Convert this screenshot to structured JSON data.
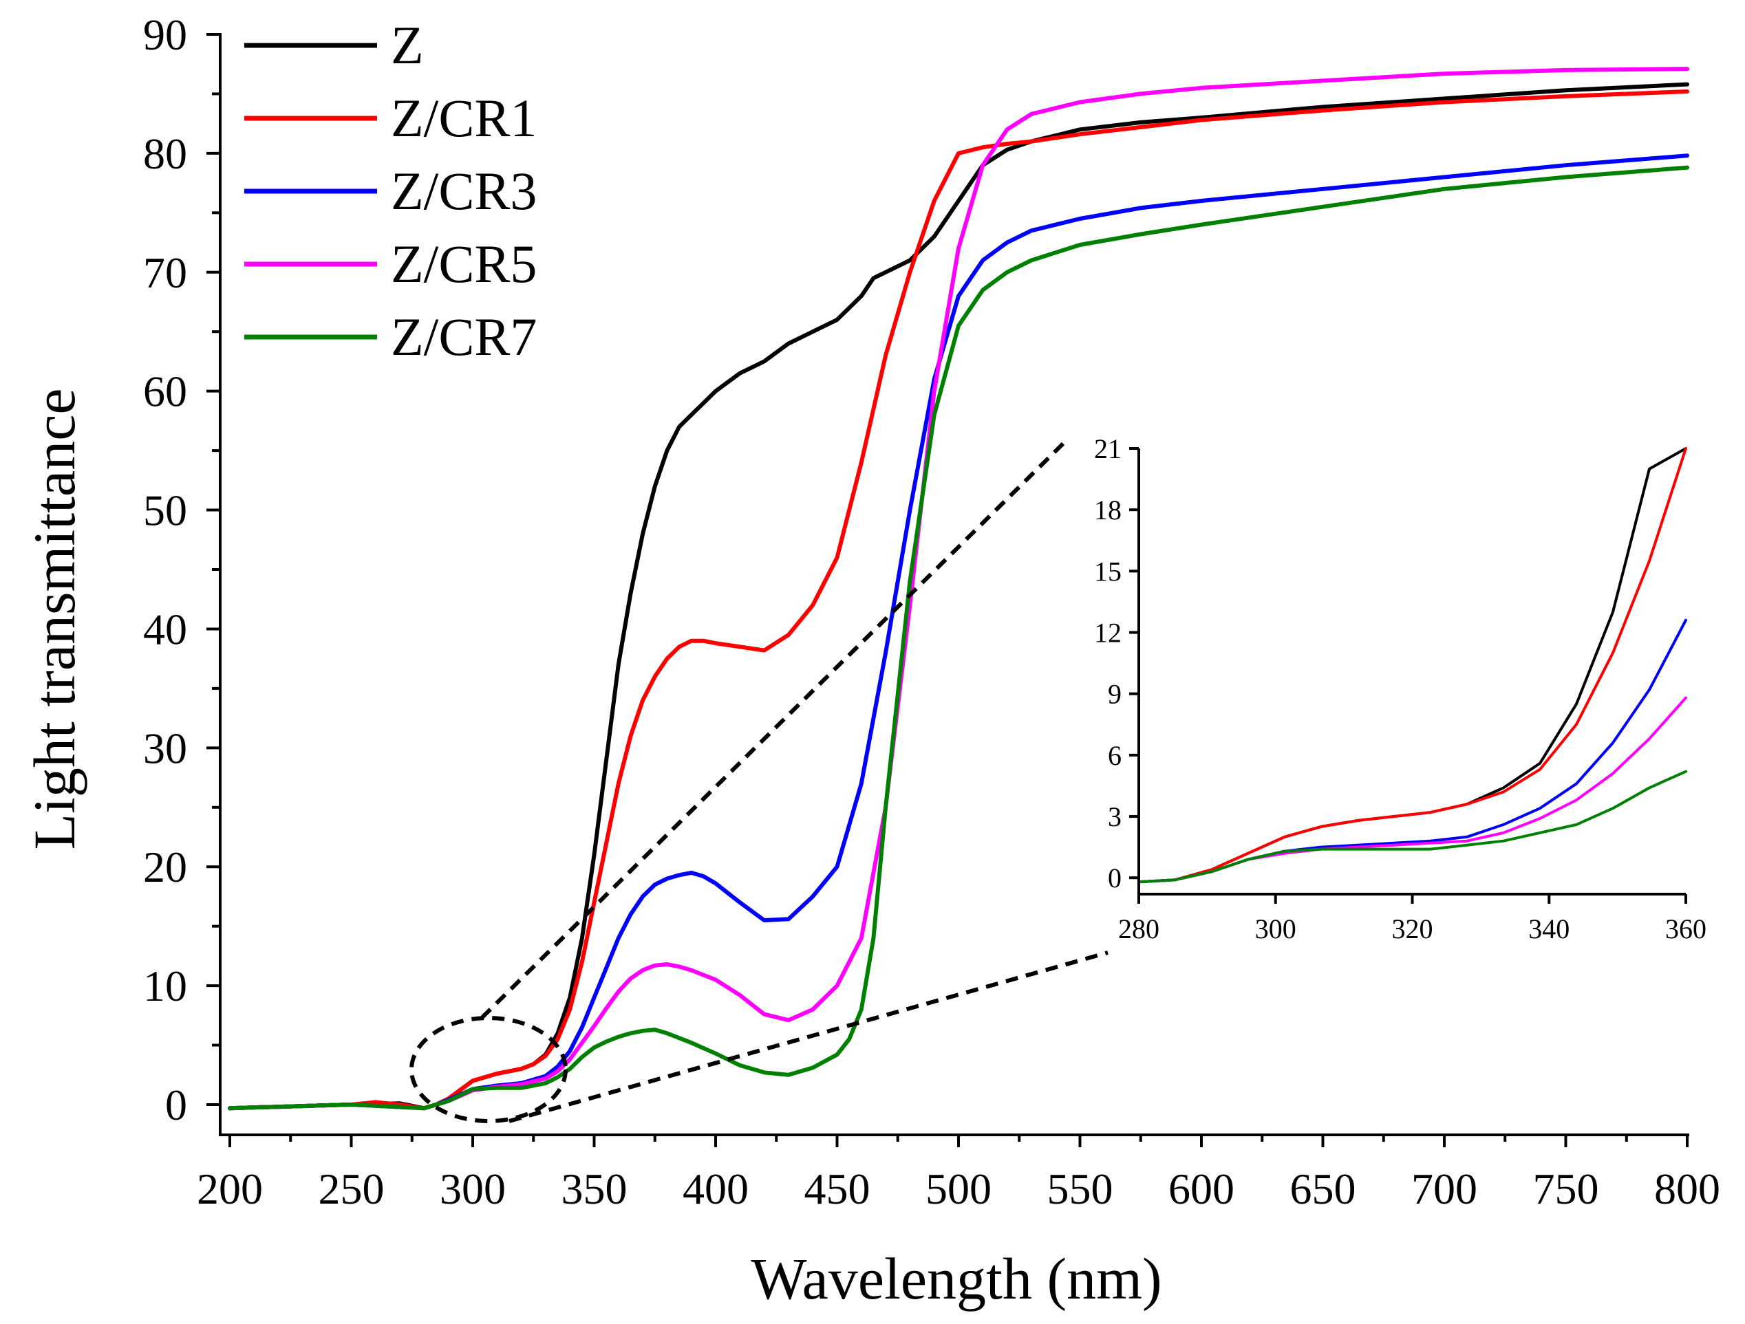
{
  "chart_data": {
    "type": "line",
    "title": "",
    "xlabel": "Wavelength (nm)",
    "ylabel": "Light transmittance",
    "xlim": [
      200,
      800
    ],
    "ylim": [
      -2,
      90
    ],
    "xticks": [
      200,
      250,
      300,
      350,
      400,
      450,
      500,
      550,
      600,
      650,
      700,
      750,
      800
    ],
    "yticks": [
      0,
      10,
      20,
      30,
      40,
      50,
      60,
      70,
      80,
      90
    ],
    "legend_position": "top-left",
    "grid": false,
    "series": [
      {
        "name": "Z",
        "color": "#000000",
        "x": [
          200,
          250,
          270,
          280,
          285,
          290,
          300,
          310,
          320,
          325,
          330,
          335,
          340,
          345,
          350,
          355,
          360,
          365,
          370,
          375,
          380,
          385,
          390,
          395,
          400,
          410,
          420,
          430,
          440,
          450,
          460,
          465,
          470,
          480,
          490,
          500,
          510,
          520,
          530,
          540,
          550,
          575,
          600,
          650,
          700,
          750,
          800
        ],
        "y": [
          -0.3,
          0,
          0.1,
          -0.3,
          0,
          0.5,
          2.0,
          2.6,
          3.0,
          3.4,
          4.2,
          6,
          9,
          14,
          21,
          29,
          37,
          43,
          48,
          52,
          55,
          57,
          58,
          59,
          60,
          61.5,
          62.5,
          64,
          65,
          66,
          68,
          69.5,
          70,
          71,
          73,
          76,
          79,
          80.3,
          81,
          81.5,
          82,
          82.6,
          83,
          83.9,
          84.6,
          85.3,
          85.8
        ]
      },
      {
        "name": "Z/CR1",
        "color": "#ff0000",
        "x": [
          200,
          250,
          260,
          270,
          280,
          285,
          290,
          300,
          310,
          320,
          325,
          330,
          335,
          340,
          345,
          350,
          355,
          360,
          365,
          370,
          375,
          380,
          385,
          390,
          395,
          400,
          410,
          420,
          430,
          440,
          450,
          460,
          470,
          480,
          490,
          500,
          510,
          520,
          530,
          540,
          550,
          575,
          600,
          650,
          700,
          750,
          800
        ],
        "y": [
          -0.3,
          0,
          0.2,
          0,
          -0.3,
          0,
          0.5,
          2.0,
          2.6,
          3.0,
          3.4,
          4.1,
          5.5,
          8,
          12,
          17,
          22,
          27,
          31,
          34,
          36,
          37.5,
          38.5,
          39,
          39,
          38.8,
          38.5,
          38.2,
          39.5,
          42,
          46,
          54,
          63,
          70,
          76,
          80,
          80.5,
          80.8,
          81,
          81.3,
          81.6,
          82.2,
          82.8,
          83.6,
          84.3,
          84.8,
          85.2
        ]
      },
      {
        "name": "Z/CR3",
        "color": "#0000ff",
        "x": [
          200,
          250,
          280,
          285,
          290,
          300,
          310,
          320,
          330,
          335,
          340,
          345,
          350,
          355,
          360,
          365,
          370,
          375,
          380,
          385,
          390,
          395,
          400,
          410,
          420,
          430,
          440,
          450,
          460,
          470,
          480,
          490,
          500,
          510,
          520,
          530,
          550,
          575,
          600,
          650,
          700,
          750,
          800
        ],
        "y": [
          -0.3,
          0,
          -0.3,
          0,
          0.4,
          1.3,
          1.6,
          1.8,
          2.4,
          3.2,
          4.5,
          6.5,
          9,
          11.5,
          14,
          16,
          17.5,
          18.5,
          19,
          19.3,
          19.5,
          19.2,
          18.6,
          17,
          15.5,
          15.6,
          17.5,
          20,
          27,
          38,
          50,
          61,
          68,
          71,
          72.5,
          73.5,
          74.5,
          75.4,
          76,
          77,
          78,
          79,
          79.8
        ]
      },
      {
        "name": "Z/CR5",
        "color": "#ff00ff",
        "x": [
          200,
          250,
          280,
          285,
          290,
          300,
          310,
          320,
          330,
          335,
          340,
          345,
          350,
          355,
          360,
          365,
          370,
          375,
          380,
          385,
          390,
          400,
          410,
          420,
          430,
          440,
          450,
          460,
          470,
          480,
          490,
          500,
          510,
          520,
          530,
          550,
          575,
          600,
          650,
          700,
          750,
          800
        ],
        "y": [
          -0.3,
          0,
          -0.3,
          0,
          0.3,
          1.2,
          1.5,
          1.7,
          2.2,
          2.8,
          3.8,
          5.2,
          6.6,
          8.1,
          9.5,
          10.6,
          11.3,
          11.7,
          11.8,
          11.6,
          11.3,
          10.5,
          9.2,
          7.6,
          7.1,
          8,
          10,
          14,
          25,
          42,
          60,
          72,
          79,
          82,
          83.3,
          84.3,
          85,
          85.5,
          86.1,
          86.7,
          87,
          87.1
        ]
      },
      {
        "name": "Z/CR7",
        "color": "#008000",
        "x": [
          200,
          250,
          280,
          285,
          290,
          300,
          310,
          320,
          330,
          335,
          340,
          345,
          350,
          355,
          360,
          365,
          370,
          375,
          380,
          390,
          400,
          410,
          420,
          430,
          440,
          450,
          455,
          460,
          465,
          470,
          480,
          490,
          500,
          510,
          520,
          530,
          550,
          575,
          600,
          650,
          700,
          750,
          800
        ],
        "y": [
          -0.3,
          0,
          -0.3,
          0,
          0.3,
          1.3,
          1.4,
          1.4,
          1.8,
          2.3,
          3,
          4,
          4.8,
          5.3,
          5.7,
          6,
          6.2,
          6.3,
          6,
          5.2,
          4.3,
          3.3,
          2.7,
          2.5,
          3.1,
          4.2,
          5.5,
          8,
          14,
          25,
          44,
          58,
          65.5,
          68.5,
          70,
          71,
          72.3,
          73.2,
          74,
          75.5,
          77,
          78,
          78.8
        ]
      }
    ],
    "inset": {
      "xlim": [
        280,
        360
      ],
      "ylim": [
        -0.8,
        21
      ],
      "xticks": [
        280,
        300,
        320,
        340,
        360
      ],
      "yticks": [
        0,
        3,
        6,
        9,
        12,
        15,
        18,
        21
      ],
      "series_y": {
        "Z": [
          -0.2,
          -0.1,
          0.4,
          1.2,
          2.0,
          2.5,
          2.8,
          3.0,
          3.2,
          3.6,
          4.4,
          5.6,
          8.5,
          13,
          20,
          21
        ],
        "Z/CR1": [
          -0.2,
          -0.1,
          0.4,
          1.2,
          2.0,
          2.5,
          2.8,
          3.0,
          3.2,
          3.6,
          4.2,
          5.3,
          7.5,
          11,
          15.5,
          21
        ],
        "Z/CR3": [
          -0.2,
          -0.1,
          0.3,
          0.9,
          1.3,
          1.5,
          1.6,
          1.7,
          1.8,
          2.0,
          2.6,
          3.4,
          4.6,
          6.6,
          9.2,
          12.6
        ],
        "Z/CR5": [
          -0.2,
          -0.1,
          0.3,
          0.9,
          1.2,
          1.4,
          1.5,
          1.6,
          1.7,
          1.8,
          2.2,
          2.9,
          3.8,
          5.1,
          6.8,
          8.8
        ],
        "Z/CR7": [
          -0.2,
          -0.1,
          0.3,
          0.9,
          1.3,
          1.4,
          1.4,
          1.4,
          1.4,
          1.6,
          1.8,
          2.2,
          2.6,
          3.4,
          4.4,
          5.2
        ]
      }
    }
  }
}
